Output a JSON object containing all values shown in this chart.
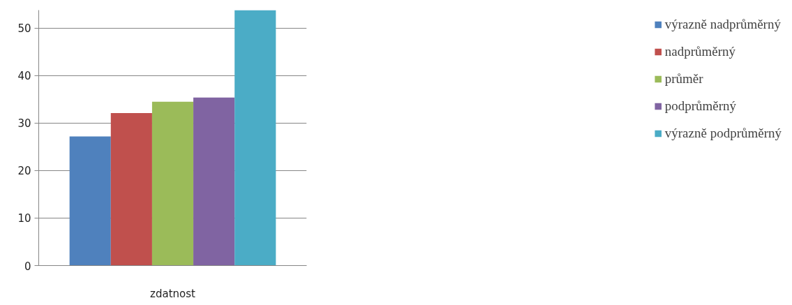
{
  "chart_data": {
    "type": "bar",
    "categories": [
      "zdatnost"
    ],
    "series": [
      {
        "name": "výrazně nadprůměrný",
        "color": "#4f81bd",
        "values": [
          27.2
        ]
      },
      {
        "name": "nadprůměrný",
        "color": "#c0504d",
        "values": [
          32.1
        ]
      },
      {
        "name": "průměr",
        "color": "#9bbb59",
        "values": [
          34.5
        ]
      },
      {
        "name": "podprůměrný",
        "color": "#8064a2",
        "values": [
          35.4
        ]
      },
      {
        "name": "výrazně podprůměrný",
        "color": "#4bacc6",
        "values": [
          53.8
        ]
      }
    ],
    "ylim": [
      0,
      53.8
    ],
    "yticks": [
      0,
      10,
      20,
      30,
      40,
      50
    ],
    "grid": "y",
    "legend": "right"
  }
}
